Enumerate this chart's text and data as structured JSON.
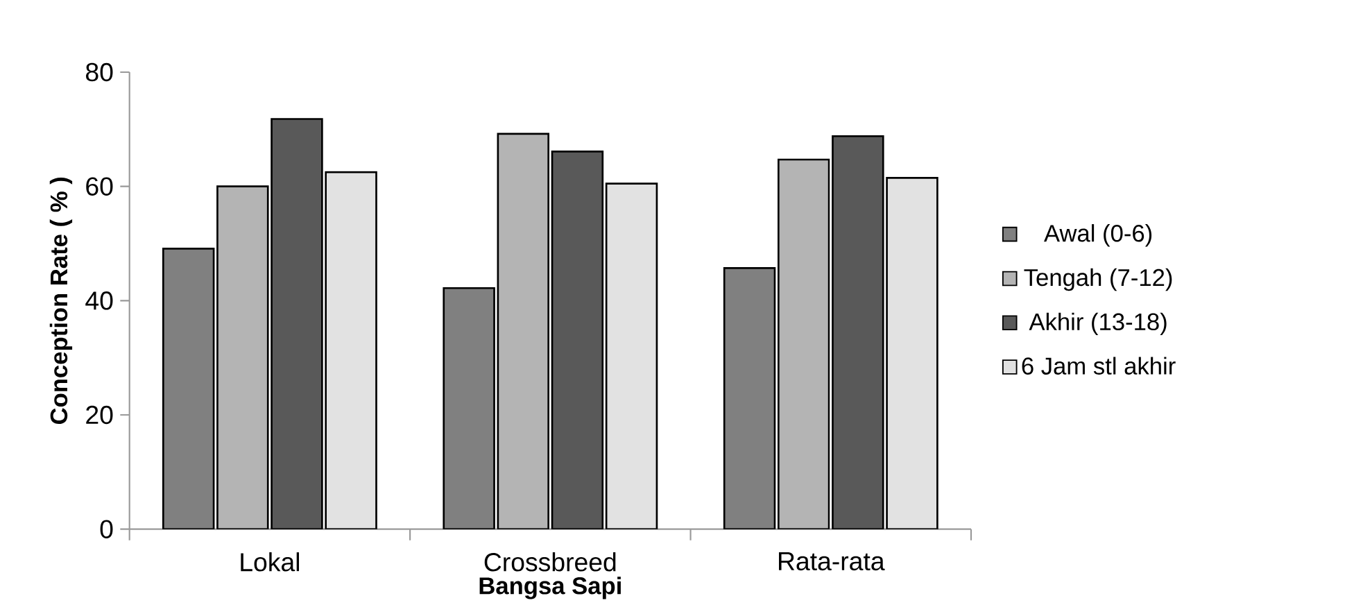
{
  "chart_data": {
    "type": "bar",
    "xlabel": "Bangsa Sapi",
    "ylabel": "Conception Rate ( % )",
    "categories": [
      "Lokal",
      "Crossbreed",
      "Rata-rata"
    ],
    "series": [
      {
        "name": "Awal (0-6)",
        "color": "#808080",
        "values": [
          49.1,
          42.2,
          45.7
        ]
      },
      {
        "name": "Tengah (7-12)",
        "color": "#b4b4b4",
        "values": [
          60,
          69.2,
          64.7
        ]
      },
      {
        "name": "Akhir (13-18)",
        "color": "#595959",
        "values": [
          71.8,
          66.1,
          68.8
        ]
      },
      {
        "name": "6 Jam stl akhir",
        "color": "#e2e2e2",
        "values": [
          62.5,
          60.5,
          61.5
        ]
      }
    ],
    "ylim": [
      0,
      80
    ],
    "yticks": [
      0,
      20,
      40,
      60,
      80
    ],
    "grid": false,
    "legend": "right"
  }
}
